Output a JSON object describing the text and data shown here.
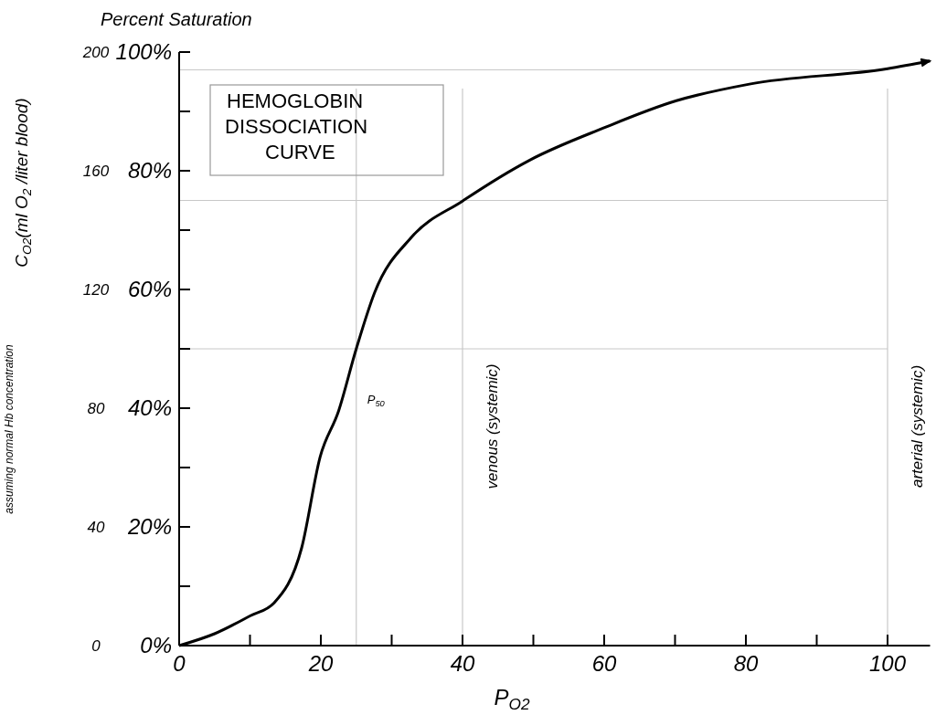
{
  "chart_data": {
    "type": "line",
    "title": "HEMOGLOBIN DISSOCIATION CURVE",
    "xlabel": "P$_{O2}$",
    "ylabel": "Percent Saturation",
    "y2label": "C$_{O2}$(ml O$_{2}$ /liter blood)",
    "annotations": [
      "assuming normal Hb concentration"
    ],
    "x": [
      0,
      5,
      10,
      13.4,
      17.3,
      19.9,
      22.5,
      25,
      27.6,
      32.8,
      40,
      49.5,
      59.9,
      70.2,
      80.5,
      100,
      106
    ],
    "series": [
      {
        "color": "#000000",
        "values": [
          0,
          2,
          5,
          7.2,
          16.5,
          31.8,
          39.5,
          50,
          59.5,
          68.8,
          74.9,
          81.8,
          87.2,
          91.8,
          94.6,
          97.2,
          98.5
        ]
      }
    ],
    "xlim": [
      0,
      106
    ],
    "xticks": [
      0,
      {
        "value": 10,
        "label": null
      },
      20,
      {
        "value": 30,
        "label": null
      },
      40,
      {
        "value": 50,
        "label": null
      },
      60,
      {
        "value": 70,
        "label": null
      },
      80,
      {
        "value": 90,
        "label": null
      },
      100
    ],
    "ylim": [
      0,
      100
    ],
    "yticks": [
      {
        "value": 0,
        "label": "0%"
      },
      {
        "value": 10,
        "label": null
      },
      {
        "value": 20,
        "label": "20%"
      },
      {
        "value": 30,
        "label": null
      },
      {
        "value": 40,
        "label": "40%"
      },
      {
        "value": 50,
        "label": null
      },
      {
        "value": 60,
        "label": "60%"
      },
      {
        "value": 70,
        "label": null
      },
      {
        "value": 80,
        "label": "80%"
      },
      {
        "value": 90,
        "label": null
      },
      {
        "value": 100,
        "label": "100%"
      }
    ],
    "y2lim": [
      0,
      200
    ],
    "y2ticks": [
      0,
      40,
      80,
      120,
      160,
      200
    ],
    "ref_lines": [
      {
        "axis": "x",
        "value": 25,
        "label": "P$_{50}$",
        "color": "#c8c8c8"
      },
      {
        "axis": "x",
        "value": 40,
        "label": "venous (systemic)",
        "color": "#c8c8c8"
      },
      {
        "axis": "x",
        "value": 100,
        "label": "arterial (systemic)",
        "color": "#c8c8c8"
      },
      {
        "axis": "y",
        "value": 50,
        "color": "#c8c8c8"
      },
      {
        "axis": "y",
        "value": 75,
        "color": "#c8c8c8"
      },
      {
        "axis": "y",
        "value": 97,
        "color": "#c8c8c8"
      }
    ],
    "grid": false,
    "marker": "none",
    "line_style": "solid"
  }
}
